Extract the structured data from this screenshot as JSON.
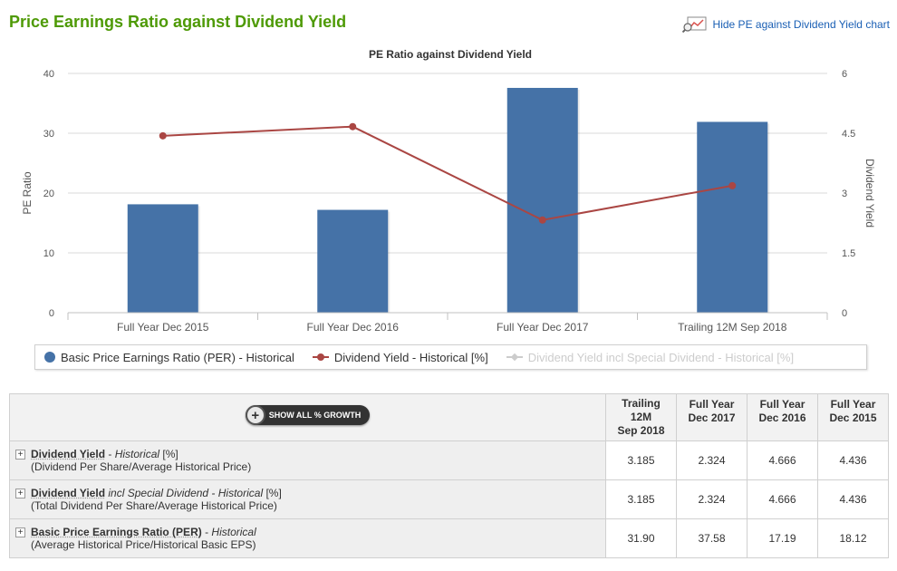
{
  "header": {
    "title": "Price Earnings Ratio against Dividend Yield",
    "hide_link": "Hide PE against Dividend Yield chart"
  },
  "chart_data": {
    "type": "bar",
    "title": "PE Ratio against Dividend Yield",
    "categories": [
      "Full Year Dec 2015",
      "Full Year Dec 2016",
      "Full Year Dec 2017",
      "Trailing 12M Sep 2018"
    ],
    "ylabel": "PE Ratio",
    "y2label": "Dividend Yield",
    "ylim": [
      0,
      40
    ],
    "y2lim": [
      0,
      6
    ],
    "yticks": [
      "0",
      "10",
      "20",
      "30",
      "40"
    ],
    "y2ticks": [
      "0",
      "1.5",
      "3",
      "4.5",
      "6"
    ],
    "grid": true,
    "legend_position": "bottom",
    "series": [
      {
        "name": "Basic Price Earnings Ratio (PER) - Historical",
        "type": "bar",
        "axis": "left",
        "color": "#4572a7",
        "values": [
          18.12,
          17.19,
          37.58,
          31.9
        ]
      },
      {
        "name": "Dividend Yield - Historical [%]",
        "type": "line",
        "axis": "right",
        "color": "#aa4643",
        "values": [
          4.436,
          4.666,
          2.324,
          3.185
        ]
      },
      {
        "name": "Dividend Yield incl Special Dividend - Historical [%]",
        "type": "line",
        "axis": "right",
        "color": "#cccccc",
        "hidden": true,
        "values": [
          4.436,
          4.666,
          2.324,
          3.185
        ]
      }
    ]
  },
  "table": {
    "growth_button": "SHOW ALL % GROWTH",
    "columns": [
      {
        "l1": "Trailing",
        "l2": "12M",
        "l3": "Sep 2018"
      },
      {
        "l1": "Full Year",
        "l2": "Dec 2017",
        "l3": ""
      },
      {
        "l1": "Full Year",
        "l2": "Dec 2016",
        "l3": ""
      },
      {
        "l1": "Full Year",
        "l2": "Dec 2015",
        "l3": ""
      }
    ],
    "rows": [
      {
        "name": "Dividend Yield",
        "sep": " - ",
        "qual": "Historical",
        "suffix": " [%]",
        "sub": "(Dividend Per Share/Average Historical Price)",
        "values": [
          "3.185",
          "2.324",
          "4.666",
          "4.436"
        ]
      },
      {
        "name": "Dividend Yield",
        "sep": " ",
        "qual": "incl Special Dividend - Historical",
        "suffix": " [%]",
        "sub": "(Total Dividend Per Share/Average Historical Price)",
        "values": [
          "3.185",
          "2.324",
          "4.666",
          "4.436"
        ]
      },
      {
        "name": "Basic Price Earnings Ratio (PER)",
        "sep": " - ",
        "qual": "Historical",
        "suffix": "",
        "sub": "(Average Historical Price/Historical Basic EPS)",
        "values": [
          "31.90",
          "37.58",
          "17.19",
          "18.12"
        ]
      }
    ]
  }
}
